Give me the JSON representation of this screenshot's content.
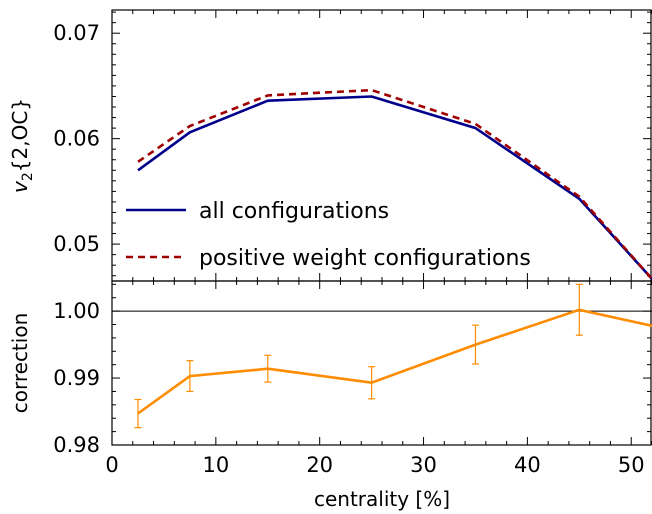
{
  "chart_data": [
    {
      "type": "line",
      "ylabel": "v_2{2,OC}",
      "xlim": [
        0,
        52
      ],
      "ylim": [
        0.0465,
        0.0722
      ],
      "yticks": [
        0.05,
        0.06,
        0.07
      ],
      "ytick_labels": [
        "0.05",
        "0.06",
        "0.07"
      ],
      "x": [
        2.5,
        7.5,
        15,
        25,
        35,
        45,
        52
      ],
      "series": [
        {
          "name": "all configurations",
          "style": "solid",
          "color": "#00008b",
          "values": [
            0.057,
            0.0606,
            0.0636,
            0.064,
            0.061,
            0.0543,
            0.0467
          ]
        },
        {
          "name": "positive weight configurations",
          "style": "dashed",
          "color": "#a00000",
          "values": [
            0.0578,
            0.0612,
            0.0641,
            0.0646,
            0.0614,
            0.0545,
            0.0467
          ]
        }
      ],
      "legend": "bottom-left",
      "grid": false
    },
    {
      "type": "line",
      "xlabel": "centrality [%]",
      "ylabel": "correction",
      "xlim": [
        0,
        52
      ],
      "ylim": [
        0.98,
        1.0045
      ],
      "xticks": [
        0,
        10,
        20,
        30,
        40,
        50
      ],
      "xtick_labels": [
        "0",
        "10",
        "20",
        "30",
        "40",
        "50"
      ],
      "yticks": [
        0.98,
        0.99,
        1.0
      ],
      "ytick_labels": [
        "0.98",
        "0.99",
        "1.00"
      ],
      "reference_line": 1.0,
      "series": [
        {
          "color": "#ff8c00",
          "x": [
            2.5,
            7.5,
            15,
            25,
            35,
            45,
            52
          ],
          "values": [
            0.9847,
            0.9903,
            0.9914,
            0.9893,
            0.995,
            1.0002,
            0.9978
          ],
          "errors": [
            0.0021,
            0.0023,
            0.002,
            0.0024,
            0.0029,
            0.0038,
            null
          ]
        }
      ],
      "grid": false
    }
  ]
}
